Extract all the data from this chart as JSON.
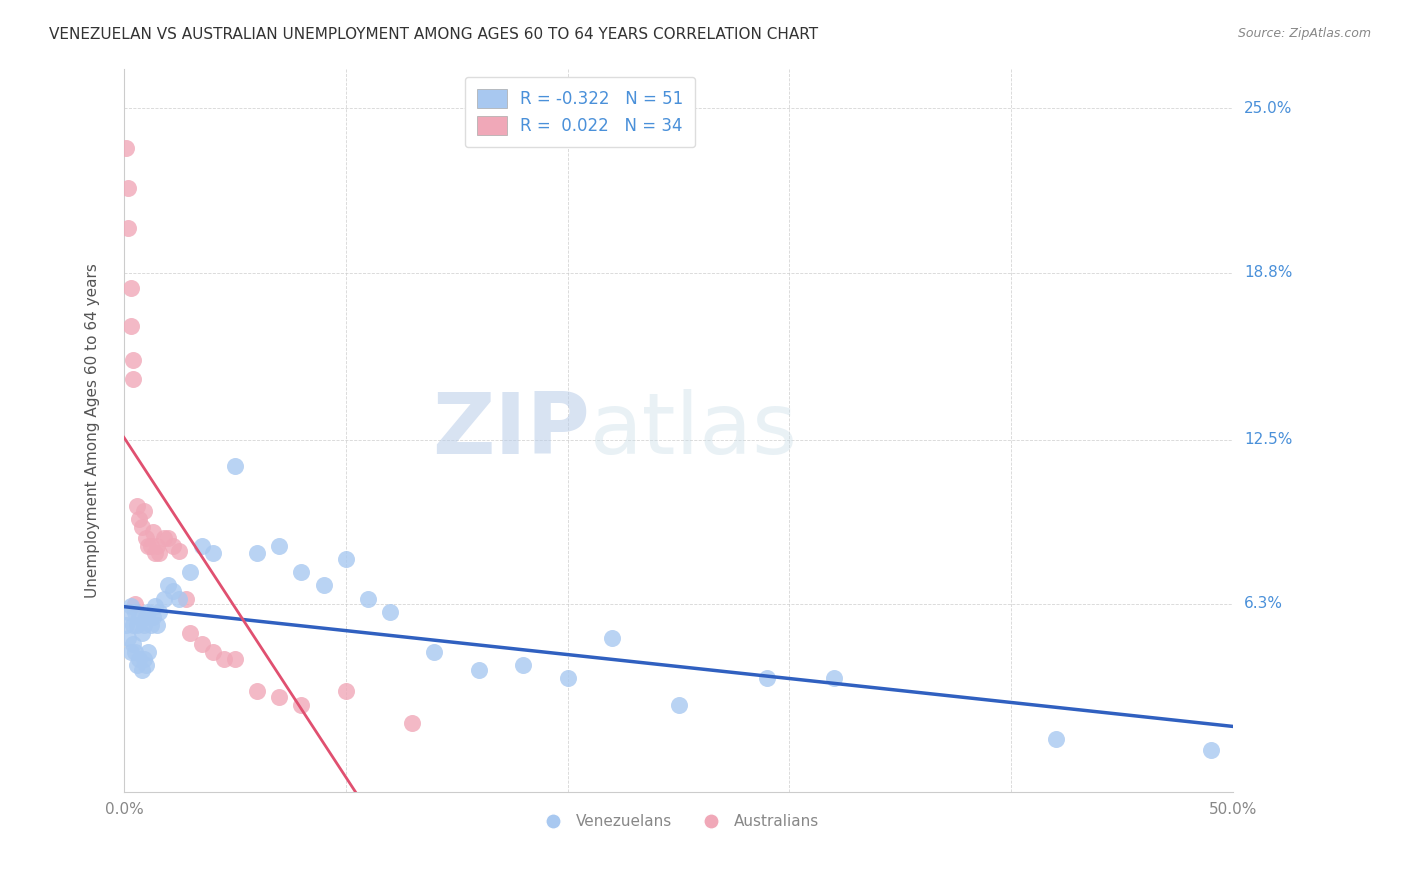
{
  "title": "VENEZUELAN VS AUSTRALIAN UNEMPLOYMENT AMONG AGES 60 TO 64 YEARS CORRELATION CHART",
  "source": "Source: ZipAtlas.com",
  "ylabel": "Unemployment Among Ages 60 to 64 years",
  "xlim": [
    0,
    0.5
  ],
  "ylim": [
    -0.008,
    0.265
  ],
  "xticks": [
    0.0,
    0.1,
    0.2,
    0.3,
    0.4,
    0.5
  ],
  "xtick_labels": [
    "0.0%",
    "",
    "",
    "",
    "",
    "50.0%"
  ],
  "ytick_labels_right": [
    "25.0%",
    "18.8%",
    "12.5%",
    "6.3%"
  ],
  "ytick_vals_right": [
    0.25,
    0.188,
    0.125,
    0.063
  ],
  "legend_blue_r": "-0.322",
  "legend_blue_n": "51",
  "legend_pink_r": "0.022",
  "legend_pink_n": "34",
  "watermark_zip": "ZIP",
  "watermark_atlas": "atlas",
  "blue_color": "#a8c8f0",
  "pink_color": "#f0a8b8",
  "blue_line_color": "#3060c0",
  "pink_line_color": "#e05070",
  "venezuelans_x": [
    0.001,
    0.002,
    0.002,
    0.003,
    0.003,
    0.004,
    0.004,
    0.005,
    0.005,
    0.006,
    0.006,
    0.007,
    0.007,
    0.008,
    0.008,
    0.009,
    0.009,
    0.01,
    0.01,
    0.011,
    0.011,
    0.012,
    0.013,
    0.014,
    0.015,
    0.016,
    0.018,
    0.02,
    0.022,
    0.025,
    0.03,
    0.035,
    0.04,
    0.05,
    0.06,
    0.07,
    0.08,
    0.09,
    0.1,
    0.11,
    0.12,
    0.14,
    0.16,
    0.18,
    0.2,
    0.22,
    0.25,
    0.29,
    0.32,
    0.42,
    0.49
  ],
  "venezuelans_y": [
    0.055,
    0.06,
    0.05,
    0.062,
    0.045,
    0.055,
    0.048,
    0.06,
    0.045,
    0.055,
    0.04,
    0.058,
    0.042,
    0.052,
    0.038,
    0.055,
    0.042,
    0.058,
    0.04,
    0.06,
    0.045,
    0.055,
    0.058,
    0.062,
    0.055,
    0.06,
    0.065,
    0.07,
    0.068,
    0.065,
    0.075,
    0.085,
    0.082,
    0.115,
    0.082,
    0.085,
    0.075,
    0.07,
    0.08,
    0.065,
    0.06,
    0.045,
    0.038,
    0.04,
    0.035,
    0.05,
    0.025,
    0.035,
    0.035,
    0.012,
    0.008
  ],
  "australians_x": [
    0.001,
    0.002,
    0.002,
    0.003,
    0.003,
    0.004,
    0.004,
    0.005,
    0.006,
    0.007,
    0.008,
    0.009,
    0.01,
    0.011,
    0.012,
    0.013,
    0.014,
    0.015,
    0.016,
    0.018,
    0.02,
    0.022,
    0.025,
    0.028,
    0.03,
    0.035,
    0.04,
    0.045,
    0.05,
    0.06,
    0.07,
    0.08,
    0.1,
    0.13
  ],
  "australians_y": [
    0.235,
    0.22,
    0.205,
    0.182,
    0.168,
    0.148,
    0.155,
    0.063,
    0.1,
    0.095,
    0.092,
    0.098,
    0.088,
    0.085,
    0.085,
    0.09,
    0.082,
    0.085,
    0.082,
    0.088,
    0.088,
    0.085,
    0.083,
    0.065,
    0.052,
    0.048,
    0.045,
    0.042,
    0.042,
    0.03,
    0.028,
    0.025,
    0.03,
    0.018
  ],
  "bg_color": "#ffffff",
  "grid_color": "#cccccc"
}
